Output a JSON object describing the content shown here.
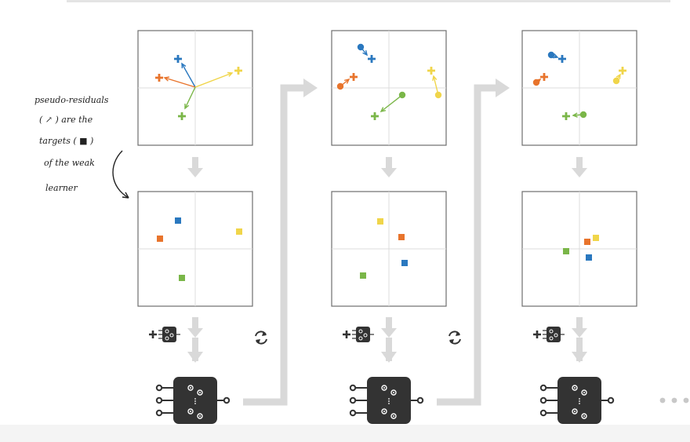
{
  "annotation": {
    "lines": [
      "pseudo-residuals",
      "( ↗ ) are the",
      "targets ( ■ )",
      "of the weak",
      "learner"
    ]
  },
  "colors": {
    "blue": "#2a78bf",
    "orange": "#e8742c",
    "yellow": "#f0d54a",
    "green": "#7ab648",
    "box_border": "#6e6e6e",
    "flow_gray": "#d9d9d9",
    "learner_fill": "#333333"
  },
  "icons": {
    "add_learner": "plus-model-chip-icon",
    "iterate": "cycle-arrows-icon",
    "learner": "gear-chip-icon",
    "continuation": "ellipsis-dots-icon"
  }
}
